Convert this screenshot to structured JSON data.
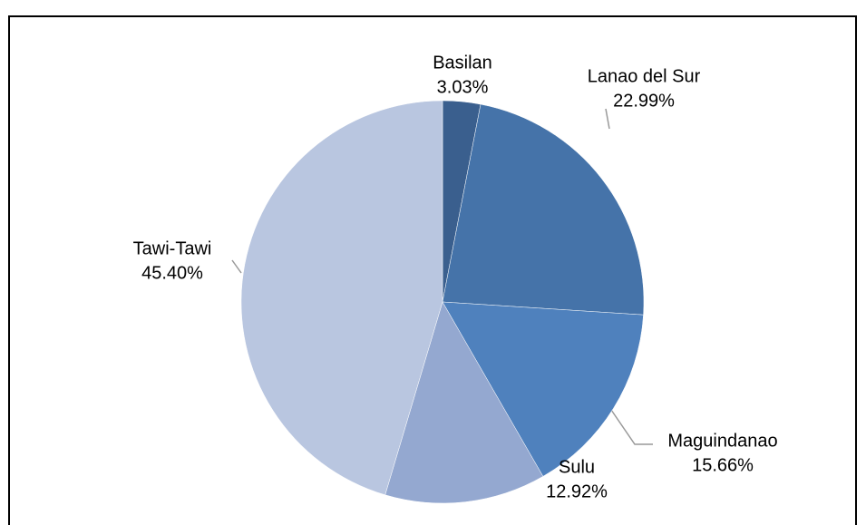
{
  "chart_data": {
    "type": "pie",
    "categories": [
      "Basilan",
      "Lanao del Sur",
      "Maguindanao",
      "Sulu",
      "Tawi-Tawi"
    ],
    "values": [
      3.03,
      22.99,
      15.66,
      12.92,
      45.4
    ],
    "value_labels": [
      "3.03%",
      "22.99%",
      "15.66%",
      "12.92%",
      "45.40%"
    ],
    "colors": [
      "#3a5f8e",
      "#4573a9",
      "#4f81bd",
      "#94a8d0",
      "#b9c6e0"
    ]
  }
}
